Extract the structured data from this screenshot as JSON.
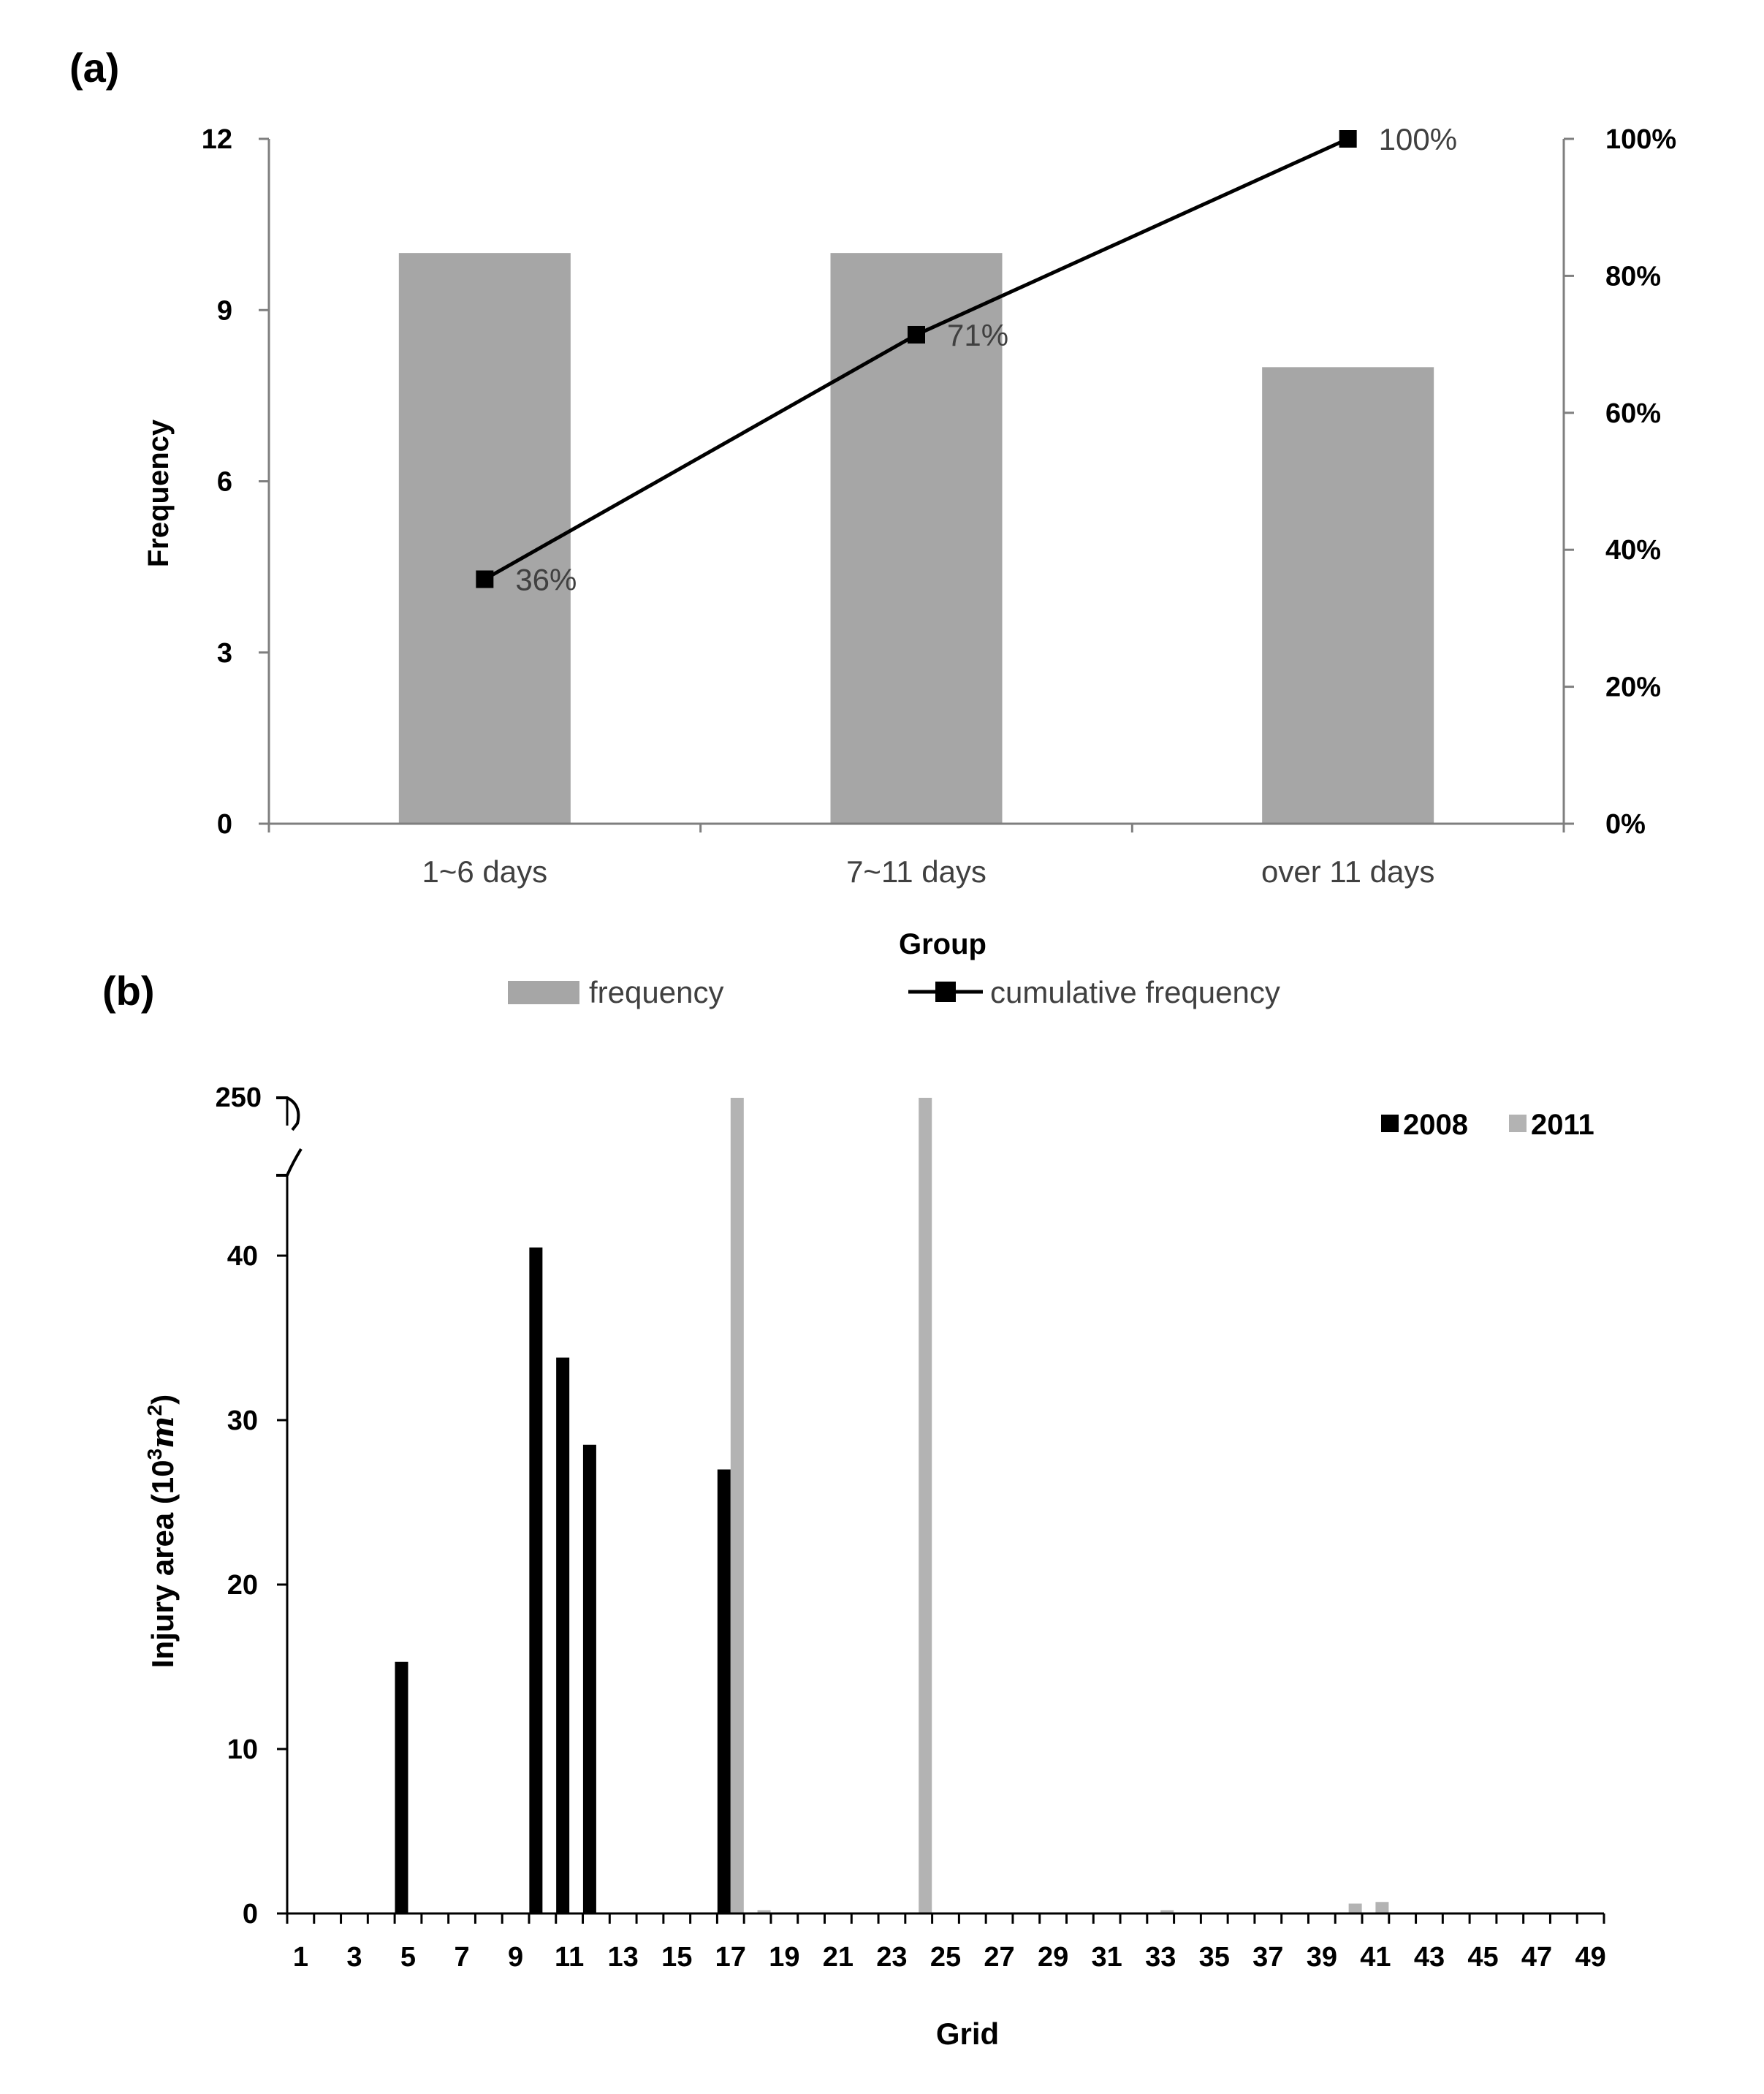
{
  "panel_labels": {
    "a": "(a)",
    "b": "(b)"
  },
  "chart_data": [
    {
      "type": "bar+line",
      "categories": [
        "1~6 days",
        "7~11 days",
        "over 11 days"
      ],
      "series": [
        {
          "name": "frequency",
          "type": "bar",
          "values": [
            10,
            10,
            8
          ]
        },
        {
          "name": "cumulative frequency",
          "type": "line",
          "axis": "right",
          "values": [
            0.357,
            0.714,
            1.0
          ],
          "labels": [
            "36%",
            "71%",
            "100%"
          ]
        }
      ],
      "xlabel": "Group",
      "ylabel": "Frequency",
      "ylim": [
        0,
        12
      ],
      "yticks": [
        "0",
        "3",
        "6",
        "9",
        "12"
      ],
      "y2lim": [
        0,
        1
      ],
      "y2ticks": [
        "0%",
        "20%",
        "40%",
        "60%",
        "80%",
        "100%"
      ],
      "legend": [
        "frequency",
        "cumulative frequency"
      ],
      "colors": {
        "bar": "#a6a6a6",
        "line": "#000000"
      }
    },
    {
      "type": "bar",
      "categories": [
        1,
        2,
        3,
        4,
        5,
        6,
        7,
        8,
        9,
        10,
        11,
        12,
        13,
        14,
        15,
        16,
        17,
        18,
        19,
        20,
        21,
        22,
        23,
        24,
        25,
        26,
        27,
        28,
        29,
        30,
        31,
        32,
        33,
        34,
        35,
        36,
        37,
        38,
        39,
        40,
        41,
        42,
        43,
        44,
        45,
        46,
        47,
        48,
        49
      ],
      "xtick_labels": [
        "1",
        "3",
        "5",
        "7",
        "9",
        "11",
        "13",
        "15",
        "17",
        "19",
        "21",
        "23",
        "25",
        "27",
        "29",
        "31",
        "33",
        "35",
        "37",
        "39",
        "41",
        "43",
        "45",
        "47",
        "49"
      ],
      "series": [
        {
          "name": "2008",
          "color": "#000000",
          "values": [
            0,
            0,
            0,
            0,
            15.3,
            0,
            0,
            0,
            0,
            40.5,
            33.8,
            28.5,
            0,
            0,
            0,
            0,
            27,
            0,
            0,
            0,
            0,
            0,
            0,
            0,
            0,
            0,
            0,
            0,
            0,
            0,
            0,
            0,
            0,
            0,
            0,
            0,
            0,
            0,
            0,
            0,
            0,
            0,
            0,
            0,
            0,
            0,
            0,
            0,
            0
          ]
        },
        {
          "name": "2011",
          "color": "#b3b3b3",
          "values": [
            0,
            0,
            0,
            0,
            0,
            0,
            0,
            0,
            0,
            0,
            0,
            0,
            0,
            0,
            0,
            0,
            250,
            0.2,
            0,
            0,
            0,
            0,
            0,
            250,
            0,
            0,
            0,
            0,
            0,
            0,
            0,
            0,
            0.2,
            0,
            0,
            0,
            0,
            0,
            0,
            0.6,
            0.7,
            0,
            0,
            0,
            0,
            0,
            0,
            0,
            0
          ]
        }
      ],
      "xlabel": "Grid",
      "ylabel": "Injury area (10",
      "ylabel_sup1": "3",
      "ylabel_unit": "m",
      "ylabel_sup2": "2",
      "ylabel_close": ")",
      "ylim": [
        0,
        45
      ],
      "axis_break": true,
      "break_label": "250",
      "yticks": [
        "0",
        "10",
        "20",
        "30",
        "40"
      ],
      "legend": [
        "2008",
        "2011"
      ]
    }
  ]
}
